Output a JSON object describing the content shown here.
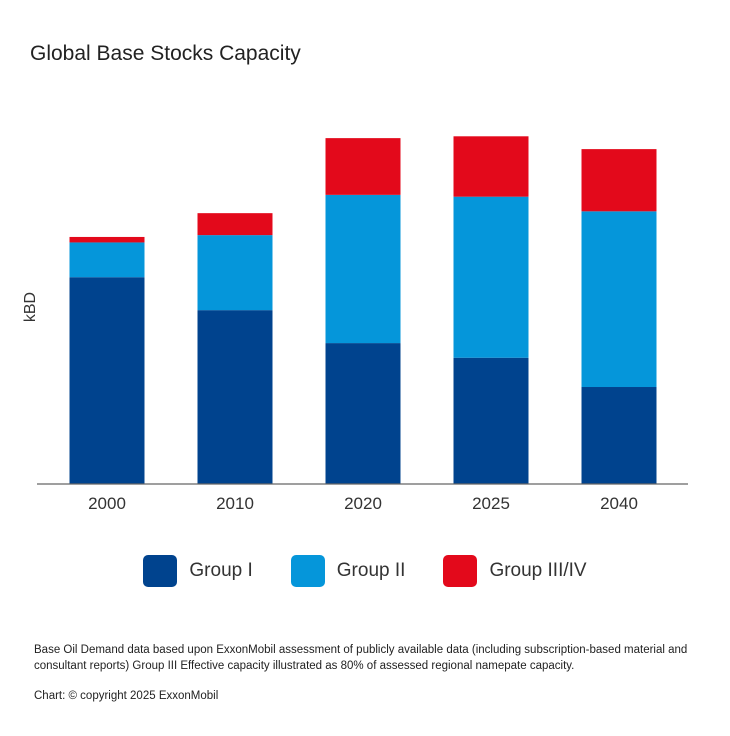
{
  "chart_data": {
    "type": "bar",
    "stacked": true,
    "title": "Global Base Stocks Capacity",
    "ylabel": "kBD",
    "xlabel": "",
    "categories": [
      "2000",
      "2010",
      "2020",
      "2025",
      "2040"
    ],
    "ylim": [
      0,
      100
    ],
    "yticks_shown": false,
    "grid": false,
    "legend_position": "bottom",
    "series": [
      {
        "name": "Group I",
        "color": "#00438E",
        "values": [
          56.5,
          47.5,
          38.5,
          34.5,
          26.5
        ]
      },
      {
        "name": "Group II",
        "color": "#0596DA",
        "values": [
          9.5,
          20.5,
          40.5,
          44.0,
          48.0
        ]
      },
      {
        "name": "Group III/IV",
        "color": "#E3091B",
        "values": [
          1.5,
          6.0,
          15.5,
          16.5,
          17.0
        ]
      }
    ]
  },
  "footnote": "Base Oil Demand data based upon ExxonMobil assessment of publicly available data (including subscription-based material and consultant reports) Group III Effective capacity illustrated as 80% of assessed regional namepate capacity.",
  "credit": "Chart: © copyright 2025 ExxonMobil"
}
